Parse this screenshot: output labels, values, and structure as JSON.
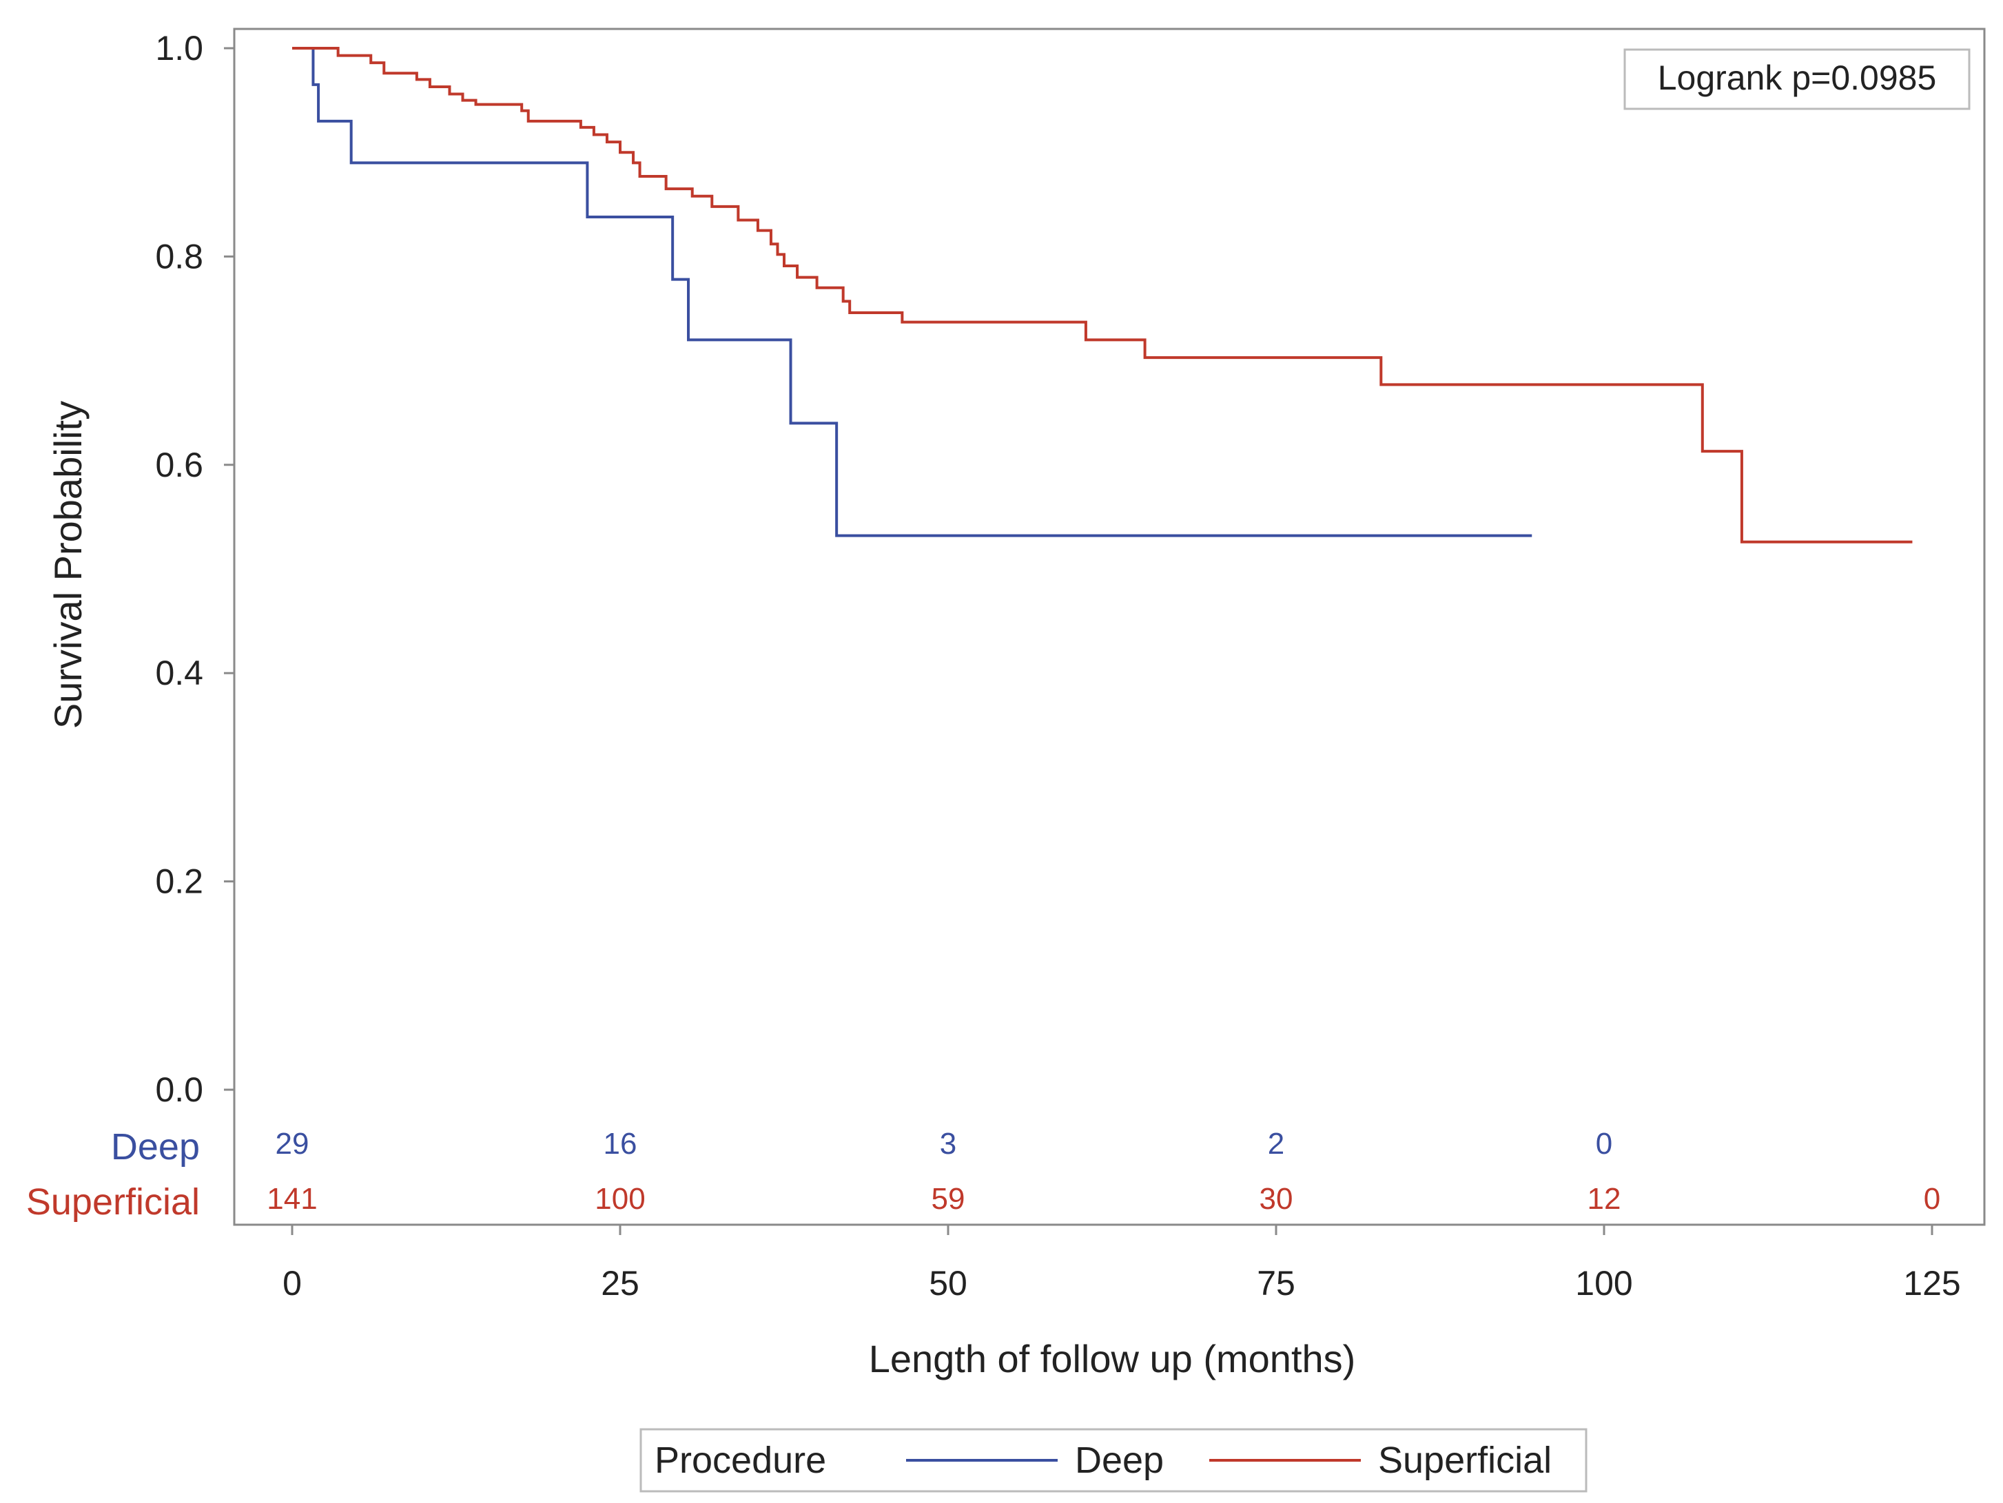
{
  "chart_data": {
    "type": "line",
    "subtype": "kaplan-meier",
    "title": "",
    "xlabel": "Length of follow up (months)",
    "ylabel": "Survival Probability",
    "xlim": [
      0,
      125
    ],
    "ylim": [
      0,
      1
    ],
    "xticks": [
      0,
      25,
      50,
      75,
      100,
      125
    ],
    "xtick_labels": [
      "0",
      "25",
      "50",
      "75",
      "100",
      "125"
    ],
    "yticks": [
      0,
      0.2,
      0.4,
      0.6,
      0.8,
      1.0
    ],
    "ytick_labels": [
      "0.0",
      "0.2",
      "0.4",
      "0.6",
      "0.8",
      "1.0"
    ],
    "grid": false,
    "annotation": "Logrank p=0.0985",
    "legend": {
      "title": "Procedure",
      "position": "bottom-center",
      "entries": [
        "Deep",
        "Superficial"
      ]
    },
    "series": [
      {
        "name": "Deep",
        "color": "#3a4fa0",
        "steps": [
          [
            0,
            1.0
          ],
          [
            1.6,
            0.965
          ],
          [
            2.0,
            0.93
          ],
          [
            4.5,
            0.89
          ],
          [
            22.5,
            0.838
          ],
          [
            29.0,
            0.778
          ],
          [
            30.2,
            0.72
          ],
          [
            38.0,
            0.64
          ],
          [
            41.5,
            0.532
          ]
        ],
        "end": 94.5
      },
      {
        "name": "Superficial",
        "color": "#c0392b",
        "steps": [
          [
            0,
            1.0
          ],
          [
            3.5,
            0.993
          ],
          [
            6.0,
            0.986
          ],
          [
            7.0,
            0.976
          ],
          [
            9.5,
            0.97
          ],
          [
            10.5,
            0.963
          ],
          [
            12.0,
            0.956
          ],
          [
            13.0,
            0.95
          ],
          [
            14.0,
            0.946
          ],
          [
            17.5,
            0.94
          ],
          [
            18.0,
            0.93
          ],
          [
            22.0,
            0.924
          ],
          [
            23.0,
            0.917
          ],
          [
            24.0,
            0.91
          ],
          [
            25.0,
            0.9
          ],
          [
            26.0,
            0.89
          ],
          [
            26.5,
            0.877
          ],
          [
            28.5,
            0.865
          ],
          [
            30.5,
            0.858
          ],
          [
            32.0,
            0.848
          ],
          [
            34.0,
            0.835
          ],
          [
            35.5,
            0.825
          ],
          [
            36.5,
            0.812
          ],
          [
            37.0,
            0.802
          ],
          [
            37.5,
            0.791
          ],
          [
            38.5,
            0.78
          ],
          [
            40.0,
            0.77
          ],
          [
            42.0,
            0.757
          ],
          [
            42.5,
            0.746
          ],
          [
            46.5,
            0.737
          ],
          [
            60.5,
            0.72
          ],
          [
            65.0,
            0.703
          ],
          [
            83.0,
            0.677
          ],
          [
            107.5,
            0.613
          ],
          [
            110.5,
            0.526
          ]
        ],
        "end": 123.5
      }
    ],
    "risk_table": {
      "times": [
        0,
        25,
        50,
        75,
        100,
        125
      ],
      "rows": [
        {
          "label": "Deep",
          "color": "#3a4fa0",
          "values": [
            "29",
            "16",
            "3",
            "2",
            "0"
          ]
        },
        {
          "label": "Superficial",
          "color": "#c0392b",
          "values": [
            "141",
            "100",
            "59",
            "30",
            "12",
            "0"
          ]
        }
      ]
    }
  }
}
